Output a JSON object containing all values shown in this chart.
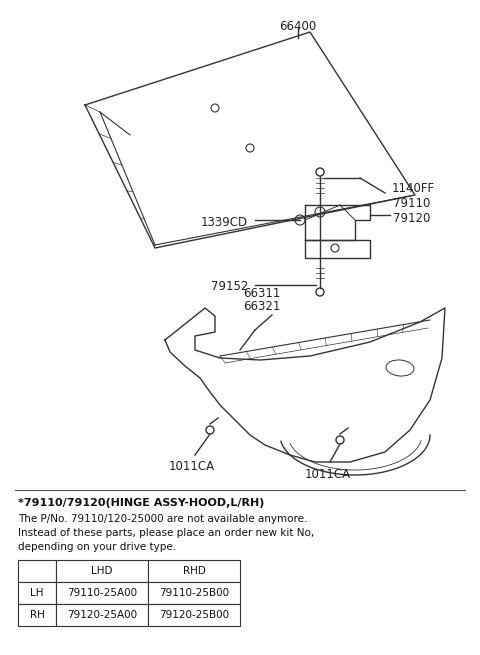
{
  "bg_color": "#ffffff",
  "line_color": "#333333",
  "fig_width": 4.8,
  "fig_height": 6.55,
  "dpi": 100,
  "title_note": "*79110/79120(HINGE ASSY-HOOD,L/RH)",
  "note_line1": "The P/No. 79110/120-25000 are not available anymore.",
  "note_line2": "Instead of these parts, please place an order new kit No,",
  "note_line3": "depending on your drive type.",
  "table_headers": [
    "",
    "LHD",
    "RHD"
  ],
  "table_row1": [
    "LH",
    "79110-25A00",
    "79110-25B00"
  ],
  "table_row2": [
    "RH",
    "79120-25A00",
    "79120-25B00"
  ]
}
